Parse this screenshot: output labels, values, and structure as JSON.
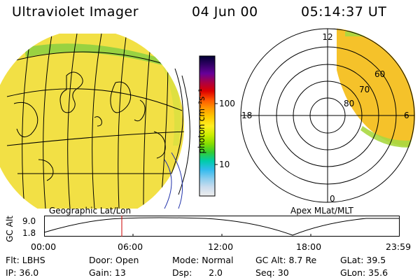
{
  "header": {
    "instrument": "Ultraviolet Imager",
    "date": "04 Jun 00",
    "time": "05:14:37 UT"
  },
  "colorbar": {
    "unit_label": "photon cm⁻²s⁻¹",
    "ticks": [
      "100",
      "10"
    ],
    "colors": [
      "#000033",
      "#330066",
      "#660099",
      "#aa0044",
      "#dd0000",
      "#ff5500",
      "#ff9900",
      "#ffcc00",
      "#ffee22",
      "#ccee00",
      "#88dd00",
      "#33cc33",
      "#00ccaa",
      "#33bbee",
      "#88ccee",
      "#ccddee",
      "#eeeeee"
    ]
  },
  "geo_panel": {
    "label": "Geographic Lat/Lon",
    "fill_color": "#f2e045",
    "edge_color": "#8fd040"
  },
  "polar_panel": {
    "label": "Apex MLat/MLT",
    "mlt_labels": [
      "12",
      "18",
      "6",
      "0"
    ],
    "mlat_labels": [
      "60",
      "70",
      "80"
    ],
    "fill_color": "#f5c22a",
    "edge_color": "#a8d840"
  },
  "alt_plot": {
    "ylabel": "GC Alt",
    "yticks": [
      "9.0",
      "1.8"
    ],
    "xticks": [
      "00:00",
      "06:00",
      "12:00",
      "18:00",
      "23:59"
    ],
    "marker_time": "05:14",
    "marker_color": "#cc0000"
  },
  "info": {
    "filter": "Flt: LBHS",
    "door": "Door: Open",
    "mode": "Mode: Normal",
    "gc_alt": "GC Alt: 8.7 Re",
    "glat": "GLat:  39.5",
    "ip": "IP: 36.0",
    "gain": "Gain: 13",
    "dsp": "Dsp:      2.0",
    "seq": "Seq: 30",
    "glon": "GLon:  35.6"
  }
}
